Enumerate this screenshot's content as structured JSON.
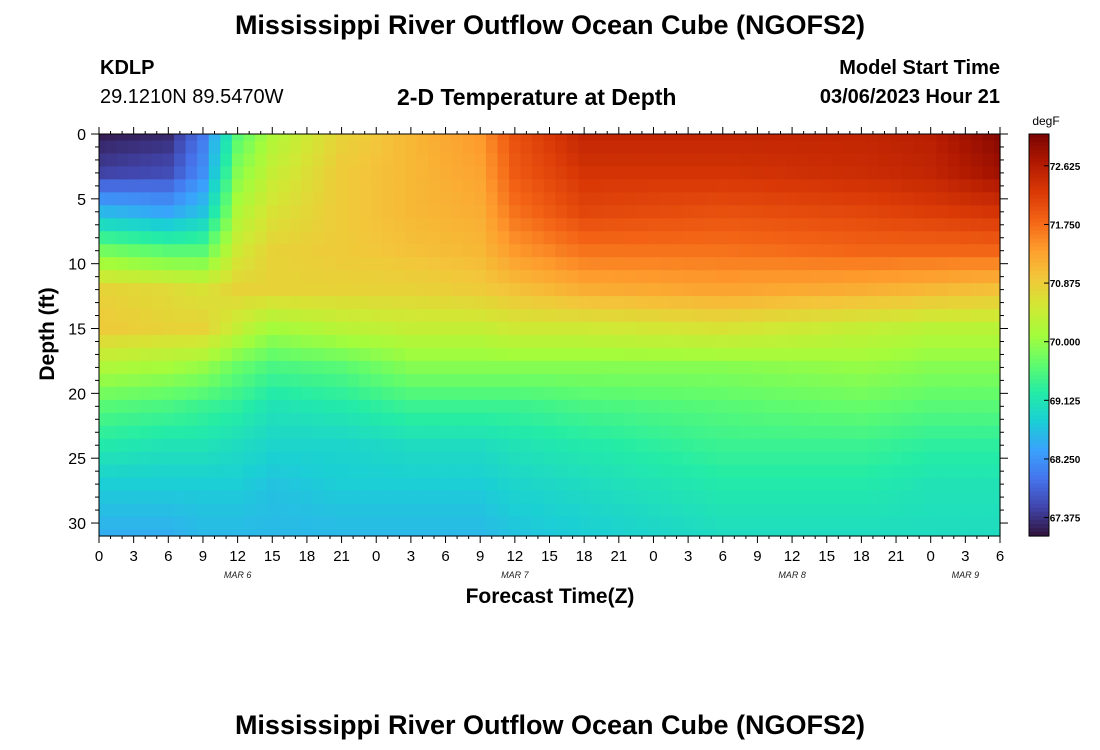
{
  "header": {
    "title": "Mississippi River Outflow Ocean Cube (NGOFS2)",
    "station_id": "KDLP",
    "station_coords": "29.1210N  89.5470W",
    "subtitle": "2-D Temperature at Depth",
    "model_start_label": "Model Start Time",
    "model_start_value": "03/06/2023 Hour 21"
  },
  "footer": {
    "title": "Mississippi River Outflow Ocean Cube (NGOFS2)"
  },
  "chart_data": {
    "type": "heatmap",
    "title": "2-D Temperature at Depth",
    "xlabel": "Forecast Time(Z)",
    "ylabel": "Depth (ft)",
    "x_tick_labels": [
      "0",
      "3",
      "6",
      "9",
      "12",
      "15",
      "18",
      "21",
      "0",
      "3",
      "6",
      "9",
      "12",
      "15",
      "18",
      "21",
      "0",
      "3",
      "6",
      "9",
      "12",
      "15",
      "18",
      "21",
      "0",
      "3",
      "6"
    ],
    "x_date_labels": [
      {
        "label": "MAR 6",
        "tick_index": 4
      },
      {
        "label": "MAR 7",
        "tick_index": 12
      },
      {
        "label": "MAR 8",
        "tick_index": 20
      },
      {
        "label": "MAR 9",
        "tick_index": 25
      }
    ],
    "x_range_hours": [
      0,
      78
    ],
    "y_ticks": [
      0,
      5,
      10,
      15,
      20,
      25,
      30
    ],
    "y_range": [
      0,
      31
    ],
    "y_inverted": true,
    "colorbar": {
      "unit": "degF",
      "tick_labels": [
        "72.625",
        "71.750",
        "70.875",
        "70.000",
        "69.125",
        "68.250",
        "67.375"
      ],
      "range": [
        67.1,
        73.1
      ],
      "colors": [
        "#30123b",
        "#4145ab",
        "#4675ed",
        "#39a2fc",
        "#1bcfd4",
        "#24eca6",
        "#61fc6c",
        "#a4fc3b",
        "#d1e834",
        "#f3c63a",
        "#fe9b2d",
        "#f36315",
        "#d93806",
        "#b11901",
        "#7a0402"
      ]
    },
    "temperature_profiles_degF": {
      "depths_ft": [
        0,
        3,
        6,
        9,
        12,
        15,
        18,
        21,
        24,
        27,
        31
      ],
      "profiles": [
        {
          "hour": 0,
          "values": [
            67.2,
            67.5,
            68.6,
            69.8,
            70.8,
            70.9,
            70.2,
            69.6,
            69.2,
            68.8,
            68.5
          ]
        },
        {
          "hour": 6,
          "values": [
            67.3,
            67.6,
            68.4,
            69.6,
            70.7,
            70.8,
            70.1,
            69.5,
            69.1,
            68.8,
            68.5
          ]
        },
        {
          "hour": 9,
          "values": [
            68.0,
            68.2,
            68.7,
            69.6,
            70.6,
            70.8,
            70.0,
            69.4,
            69.1,
            68.8,
            68.6
          ]
        },
        {
          "hour": 12,
          "values": [
            69.6,
            69.9,
            70.2,
            70.5,
            70.8,
            70.4,
            69.7,
            69.3,
            69.0,
            68.8,
            68.6
          ]
        },
        {
          "hour": 15,
          "values": [
            70.2,
            70.4,
            70.6,
            70.8,
            70.8,
            70.1,
            69.5,
            69.1,
            68.9,
            68.7,
            68.6
          ]
        },
        {
          "hour": 21,
          "values": [
            70.8,
            70.9,
            70.9,
            70.9,
            70.8,
            70.3,
            69.6,
            69.2,
            68.9,
            68.8,
            68.6
          ]
        },
        {
          "hour": 27,
          "values": [
            71.1,
            71.1,
            71.1,
            71.0,
            70.8,
            70.4,
            69.9,
            69.4,
            69.0,
            68.8,
            68.6
          ]
        },
        {
          "hour": 33,
          "values": [
            71.4,
            71.3,
            71.2,
            71.1,
            70.9,
            70.4,
            69.9,
            69.4,
            69.0,
            68.8,
            68.6
          ]
        },
        {
          "hour": 36,
          "values": [
            72.0,
            71.9,
            71.7,
            71.4,
            71.0,
            70.5,
            69.9,
            69.4,
            69.1,
            68.9,
            68.7
          ]
        },
        {
          "hour": 42,
          "values": [
            72.5,
            72.3,
            72.1,
            71.7,
            71.2,
            70.5,
            69.9,
            69.5,
            69.2,
            69.0,
            68.8
          ]
        },
        {
          "hour": 54,
          "values": [
            72.5,
            72.3,
            72.0,
            71.7,
            71.3,
            70.6,
            69.9,
            69.6,
            69.4,
            69.2,
            69.0
          ]
        },
        {
          "hour": 66,
          "values": [
            72.5,
            72.4,
            72.1,
            71.8,
            71.2,
            70.4,
            70.0,
            69.7,
            69.4,
            69.2,
            69.0
          ]
        },
        {
          "hour": 72,
          "values": [
            72.6,
            72.5,
            72.2,
            71.8,
            71.1,
            70.3,
            69.9,
            69.6,
            69.3,
            69.1,
            69.0
          ]
        },
        {
          "hour": 78,
          "values": [
            73.0,
            72.8,
            72.3,
            71.8,
            71.0,
            70.3,
            69.9,
            69.6,
            69.3,
            69.1,
            69.0
          ]
        }
      ]
    }
  }
}
